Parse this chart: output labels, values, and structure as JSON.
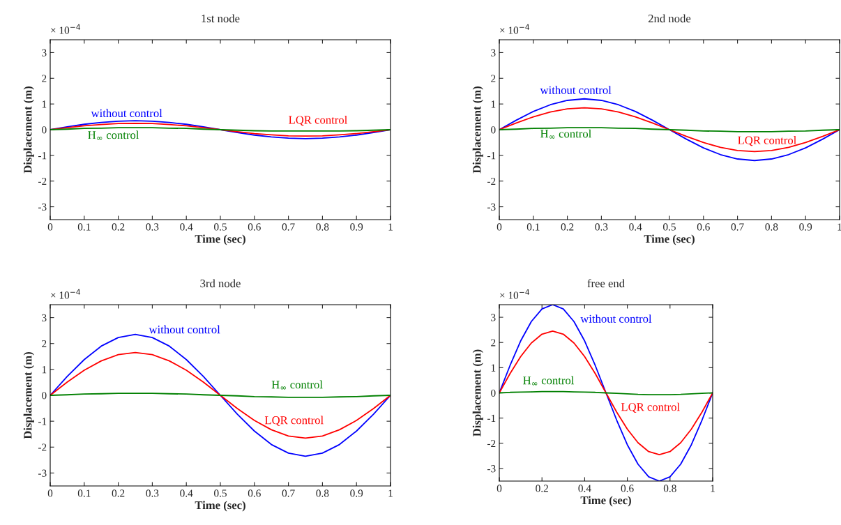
{
  "chart_data": [
    {
      "type": "line",
      "title": "1st node",
      "xlabel": "Time (sec)",
      "ylabel": "Displacement (m)",
      "annotations": [
        "× 10$^{−4}$"
      ],
      "xlim": [
        0,
        1
      ],
      "ylim": [
        -3.5,
        3.5
      ],
      "xticks": [
        0,
        0.1,
        0.2,
        0.3,
        0.4,
        0.5,
        0.6,
        0.7,
        0.8,
        0.9,
        1
      ],
      "yticks": [
        -3,
        -2,
        -1,
        0,
        1,
        2,
        3
      ],
      "x": [
        0,
        0.05,
        0.1,
        0.15,
        0.2,
        0.25,
        0.3,
        0.35,
        0.4,
        0.45,
        0.5,
        0.55,
        0.6,
        0.65,
        0.7,
        0.75,
        0.8,
        0.85,
        0.9,
        0.95,
        1
      ],
      "series": [
        {
          "name": "without control",
          "color": "#0000ff",
          "values": [
            0,
            0.11,
            0.21,
            0.28,
            0.33,
            0.35,
            0.33,
            0.28,
            0.21,
            0.11,
            0,
            -0.11,
            -0.21,
            -0.28,
            -0.33,
            -0.35,
            -0.33,
            -0.28,
            -0.21,
            -0.11,
            0
          ]
        },
        {
          "name": "LQR control",
          "color": "#ff0000",
          "values": [
            0,
            0.08,
            0.15,
            0.2,
            0.24,
            0.25,
            0.24,
            0.2,
            0.15,
            0.08,
            0,
            -0.08,
            -0.15,
            -0.2,
            -0.24,
            -0.25,
            -0.24,
            -0.2,
            -0.15,
            -0.08,
            0
          ]
        },
        {
          "name": "H$_{∞}$ control",
          "color": "#008000",
          "values": [
            0,
            0.02,
            0.05,
            0.06,
            0.08,
            0.08,
            0.08,
            0.06,
            0.05,
            0.02,
            0,
            -0.02,
            -0.04,
            -0.05,
            -0.05,
            -0.05,
            -0.05,
            -0.05,
            -0.04,
            -0.02,
            0
          ]
        }
      ]
    },
    {
      "type": "line",
      "title": "2nd node",
      "xlabel": "Time (sec)",
      "ylabel": "Displacement (m)",
      "annotations": [
        "× 10$^{−4}$"
      ],
      "xlim": [
        0,
        1
      ],
      "ylim": [
        -3.5,
        3.5
      ],
      "xticks": [
        0,
        0.1,
        0.2,
        0.3,
        0.4,
        0.5,
        0.6,
        0.7,
        0.8,
        0.9,
        1
      ],
      "yticks": [
        -3,
        -2,
        -1,
        0,
        1,
        2,
        3
      ],
      "x": [
        0,
        0.05,
        0.1,
        0.15,
        0.2,
        0.25,
        0.3,
        0.35,
        0.4,
        0.45,
        0.5,
        0.55,
        0.6,
        0.65,
        0.7,
        0.75,
        0.8,
        0.85,
        0.9,
        0.95,
        1
      ],
      "series": [
        {
          "name": "without control",
          "color": "#0000ff",
          "values": [
            0,
            0.37,
            0.71,
            0.97,
            1.14,
            1.2,
            1.14,
            0.97,
            0.71,
            0.37,
            0,
            -0.37,
            -0.71,
            -0.97,
            -1.14,
            -1.2,
            -1.14,
            -0.97,
            -0.71,
            -0.37,
            0
          ]
        },
        {
          "name": "LQR control",
          "color": "#ff0000",
          "values": [
            0,
            0.26,
            0.5,
            0.69,
            0.81,
            0.85,
            0.81,
            0.69,
            0.5,
            0.26,
            0,
            -0.26,
            -0.5,
            -0.69,
            -0.81,
            -0.85,
            -0.81,
            -0.69,
            -0.5,
            -0.26,
            0
          ]
        },
        {
          "name": "H$_{∞}$ control",
          "color": "#008000",
          "values": [
            0,
            0.02,
            0.05,
            0.06,
            0.08,
            0.08,
            0.08,
            0.06,
            0.05,
            0.02,
            0,
            -0.02,
            -0.05,
            -0.06,
            -0.08,
            -0.08,
            -0.08,
            -0.06,
            -0.05,
            -0.02,
            0
          ]
        }
      ]
    },
    {
      "type": "line",
      "title": "3rd node",
      "xlabel": "Time (sec)",
      "ylabel": "Displacement (m)",
      "annotations": [
        "× 10$^{−4}$"
      ],
      "xlim": [
        0,
        1
      ],
      "ylim": [
        -3.5,
        3.5
      ],
      "xticks": [
        0,
        0.1,
        0.2,
        0.3,
        0.4,
        0.5,
        0.6,
        0.7,
        0.8,
        0.9,
        1
      ],
      "yticks": [
        -3,
        -2,
        -1,
        0,
        1,
        2,
        3
      ],
      "x": [
        0,
        0.05,
        0.1,
        0.15,
        0.2,
        0.25,
        0.3,
        0.35,
        0.4,
        0.45,
        0.5,
        0.55,
        0.6,
        0.65,
        0.7,
        0.75,
        0.8,
        0.85,
        0.9,
        0.95,
        1
      ],
      "series": [
        {
          "name": "without control",
          "color": "#0000ff",
          "values": [
            0,
            0.73,
            1.38,
            1.9,
            2.23,
            2.35,
            2.23,
            1.9,
            1.38,
            0.73,
            0,
            -0.73,
            -1.38,
            -1.9,
            -2.23,
            -2.35,
            -2.23,
            -1.9,
            -1.38,
            -0.73,
            0
          ]
        },
        {
          "name": "LQR control",
          "color": "#ff0000",
          "values": [
            0,
            0.51,
            0.97,
            1.33,
            1.57,
            1.65,
            1.57,
            1.33,
            0.97,
            0.51,
            0,
            -0.51,
            -0.97,
            -1.33,
            -1.57,
            -1.65,
            -1.57,
            -1.33,
            -0.97,
            -0.51,
            0
          ]
        },
        {
          "name": "H$_{∞}$ control",
          "color": "#008000",
          "values": [
            0,
            0.02,
            0.05,
            0.06,
            0.08,
            0.08,
            0.08,
            0.06,
            0.05,
            0.02,
            0,
            -0.02,
            -0.05,
            -0.06,
            -0.08,
            -0.08,
            -0.08,
            -0.06,
            -0.05,
            -0.02,
            0
          ]
        }
      ]
    },
    {
      "type": "line",
      "title": "free end",
      "xlabel": "Time (sec)",
      "ylabel": "Displacement (m)",
      "annotations": [
        "× 10$^{−4}$"
      ],
      "xlim": [
        0,
        1
      ],
      "ylim": [
        -3.5,
        3.5
      ],
      "xticks": [
        0,
        0.2,
        0.4,
        0.6,
        0.8,
        1
      ],
      "yticks": [
        -3,
        -2,
        -1,
        0,
        1,
        2,
        3
      ],
      "x": [
        0,
        0.05,
        0.1,
        0.15,
        0.2,
        0.25,
        0.3,
        0.35,
        0.4,
        0.45,
        0.5,
        0.55,
        0.6,
        0.65,
        0.7,
        0.75,
        0.8,
        0.85,
        0.9,
        0.95,
        1
      ],
      "series": [
        {
          "name": "without control",
          "color": "#0000ff",
          "values": [
            0,
            1.08,
            2.06,
            2.83,
            3.33,
            3.5,
            3.33,
            2.83,
            2.06,
            1.08,
            0,
            -1.08,
            -2.06,
            -2.83,
            -3.33,
            -3.5,
            -3.33,
            -2.83,
            -2.06,
            -1.08,
            0
          ]
        },
        {
          "name": "LQR control",
          "color": "#ff0000",
          "values": [
            0,
            0.76,
            1.44,
            1.98,
            2.33,
            2.45,
            2.33,
            1.98,
            1.44,
            0.76,
            0,
            -0.76,
            -1.44,
            -1.98,
            -2.33,
            -2.45,
            -2.33,
            -1.98,
            -1.44,
            -0.76,
            0
          ]
        },
        {
          "name": "H$_{∞}$ control",
          "color": "#008000",
          "values": [
            0,
            0.02,
            0.03,
            0.04,
            0.05,
            0.05,
            0.05,
            0.04,
            0.03,
            0.02,
            0,
            -0.02,
            -0.04,
            -0.06,
            -0.07,
            -0.07,
            -0.07,
            -0.06,
            -0.04,
            -0.02,
            0
          ]
        }
      ]
    }
  ]
}
